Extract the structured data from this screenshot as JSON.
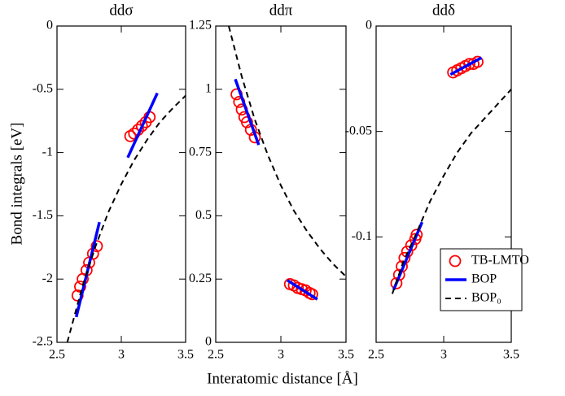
{
  "chart_data": [
    {
      "type": "line",
      "title": "ddσ",
      "ylabel": "Bond integrals [eV]",
      "xlim": [
        2.5,
        3.5
      ],
      "xticks": [
        2.5,
        3,
        3.5
      ],
      "ylim": [
        -2.5,
        0
      ],
      "yticks": [
        0,
        -0.5,
        -1,
        -1.5,
        -2,
        -2.5
      ],
      "series": [
        {
          "marker": "circle",
          "color": "#ff0000",
          "x": [
            2.66,
            2.68,
            2.7,
            2.73,
            2.75,
            2.78,
            2.81,
            3.07,
            3.1,
            3.13,
            3.16,
            3.19,
            3.22
          ],
          "values": [
            -2.13,
            -2.06,
            -2.0,
            -1.93,
            -1.87,
            -1.8,
            -1.74,
            -0.87,
            -0.85,
            -0.82,
            -0.79,
            -0.76,
            -0.72
          ]
        },
        {
          "marker": "solid",
          "color": "#0000ff",
          "x": [
            2.65,
            2.83,
            2.94,
            3.05,
            3.28
          ],
          "values": [
            -2.3,
            -1.55,
            null,
            -1.04,
            -0.53
          ]
        },
        {
          "marker": "dashed",
          "color": "#000000",
          "x": [
            2.58,
            2.7,
            2.8,
            2.9,
            3.0,
            3.1,
            3.2,
            3.3,
            3.4,
            3.5
          ],
          "values": [
            -2.5,
            -2.05,
            -1.74,
            -1.47,
            -1.25,
            -1.06,
            -0.9,
            -0.76,
            -0.65,
            -0.55
          ]
        }
      ]
    },
    {
      "type": "line",
      "title": "ddπ",
      "xlabel": "Interatomic distance [Å]",
      "xlim": [
        2.5,
        3.5
      ],
      "xticks": [
        2.5,
        3,
        3.5
      ],
      "ylim": [
        0,
        1.25
      ],
      "yticks": [
        0,
        0.25,
        0.5,
        0.75,
        1,
        1.25
      ],
      "series": [
        {
          "marker": "circle",
          "color": "#ff0000",
          "x": [
            2.66,
            2.68,
            2.7,
            2.72,
            2.74,
            2.77,
            2.8,
            3.07,
            3.1,
            3.13,
            3.16,
            3.19,
            3.22,
            3.24
          ],
          "values": [
            0.98,
            0.95,
            0.92,
            0.89,
            0.87,
            0.84,
            0.81,
            0.23,
            0.225,
            0.215,
            0.21,
            0.205,
            0.195,
            0.19
          ]
        },
        {
          "marker": "solid",
          "color": "#0000ff",
          "x": [
            2.65,
            2.83,
            2.94,
            3.05,
            3.28
          ],
          "values": [
            1.04,
            0.78,
            null,
            0.245,
            0.17
          ]
        },
        {
          "marker": "dashed",
          "color": "#000000",
          "x": [
            2.6,
            2.7,
            2.8,
            2.9,
            3.0,
            3.1,
            3.2,
            3.3,
            3.4,
            3.5
          ],
          "values": [
            1.25,
            1.05,
            0.88,
            0.74,
            0.62,
            0.52,
            0.44,
            0.37,
            0.31,
            0.26
          ]
        }
      ]
    },
    {
      "type": "line",
      "title": "ddδ",
      "legend": "lower right",
      "xlim": [
        2.5,
        3.5
      ],
      "xticks": [
        2.5,
        3,
        3.5
      ],
      "ylim": [
        -0.15,
        0
      ],
      "yticks": [
        0,
        -0.05,
        -0.1
      ],
      "series": [
        {
          "name": "TB-LMTO",
          "marker": "circle",
          "color": "#ff0000",
          "x": [
            2.65,
            2.67,
            2.69,
            2.71,
            2.73,
            2.76,
            2.79,
            2.8,
            3.07,
            3.1,
            3.13,
            3.16,
            3.19,
            3.22,
            3.25
          ],
          "values": [
            -0.122,
            -0.118,
            -0.114,
            -0.11,
            -0.107,
            -0.104,
            -0.101,
            -0.099,
            -0.022,
            -0.021,
            -0.02,
            -0.019,
            -0.018,
            -0.018,
            -0.017
          ]
        },
        {
          "name": "BOP",
          "marker": "solid",
          "color": "#0000ff",
          "x": [
            2.63,
            2.84,
            2.94,
            3.05,
            3.28
          ],
          "values": [
            -0.125,
            -0.093,
            null,
            -0.023,
            -0.015
          ]
        },
        {
          "name": "BOP₀",
          "marker": "dashed",
          "color": "#000000",
          "x": [
            2.62,
            2.7,
            2.8,
            2.9,
            3.0,
            3.1,
            3.2,
            3.3,
            3.4,
            3.5
          ],
          "values": [
            -0.127,
            -0.112,
            -0.098,
            -0.083,
            -0.071,
            -0.06,
            -0.051,
            -0.044,
            -0.037,
            -0.03
          ]
        }
      ]
    }
  ]
}
